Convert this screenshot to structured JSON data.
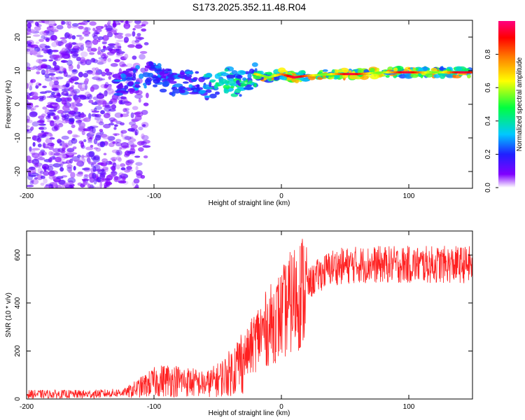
{
  "figure_title": "S173.2025.352.11.48.R04",
  "chart_data": [
    {
      "type": "heatmap",
      "title": "",
      "xlabel": "Height of straight line (km)",
      "ylabel": "Frequency (Hz)",
      "xlim": [
        -200,
        150
      ],
      "ylim": [
        -25,
        25
      ],
      "xticks": [
        -200,
        -100,
        0,
        100
      ],
      "yticks": [
        -20,
        -10,
        0,
        10,
        20
      ],
      "colorbar": {
        "label": "Normalized spectral amplitude",
        "range": [
          0.0,
          1.0
        ],
        "ticks": [
          0.0,
          0.2,
          0.4,
          0.6,
          0.8
        ],
        "colormap": "rainbow-white-to-magenta",
        "colors": [
          "#ffffff",
          "#8000ff",
          "#2020ff",
          "#00c8ff",
          "#00ff40",
          "#ffff00",
          "#ff8000",
          "#ff0000",
          "#ff0080"
        ]
      },
      "ridge": {
        "x": [
          -130,
          -110,
          -100,
          -90,
          -80,
          -70,
          -60,
          -50,
          -40,
          -35,
          -30,
          -20,
          -10,
          0,
          10,
          20,
          40,
          60,
          80,
          90,
          100,
          120,
          150
        ],
        "frequency": [
          6,
          8,
          9,
          7,
          6,
          7,
          5,
          6,
          8,
          5,
          7,
          9,
          8,
          9,
          8,
          8.5,
          9,
          9,
          9.5,
          9.5,
          9.5,
          9.5,
          9.5
        ]
      }
    },
    {
      "type": "line",
      "title": "",
      "xlabel": "Height of straight line (km)",
      "ylabel": "SNR (10 * v/v)",
      "xlim": [
        -200,
        150
      ],
      "ylim": [
        0,
        700
      ],
      "xticks": [
        -200,
        -100,
        0,
        100
      ],
      "yticks": [
        0,
        200,
        400,
        600
      ],
      "color": "#ff2020",
      "envelope": {
        "x": [
          -200,
          -150,
          -130,
          -120,
          -110,
          -100,
          -90,
          -80,
          -70,
          -60,
          -50,
          -40,
          -30,
          -25,
          -20,
          -15,
          -10,
          -5,
          0,
          10,
          20,
          30,
          40,
          60,
          80,
          100,
          120,
          150
        ],
        "mean": [
          20,
          20,
          25,
          30,
          50,
          70,
          80,
          75,
          70,
          60,
          80,
          110,
          170,
          200,
          250,
          280,
          300,
          330,
          350,
          420,
          470,
          520,
          550,
          560,
          560,
          560,
          560,
          560
        ]
      }
    }
  ]
}
